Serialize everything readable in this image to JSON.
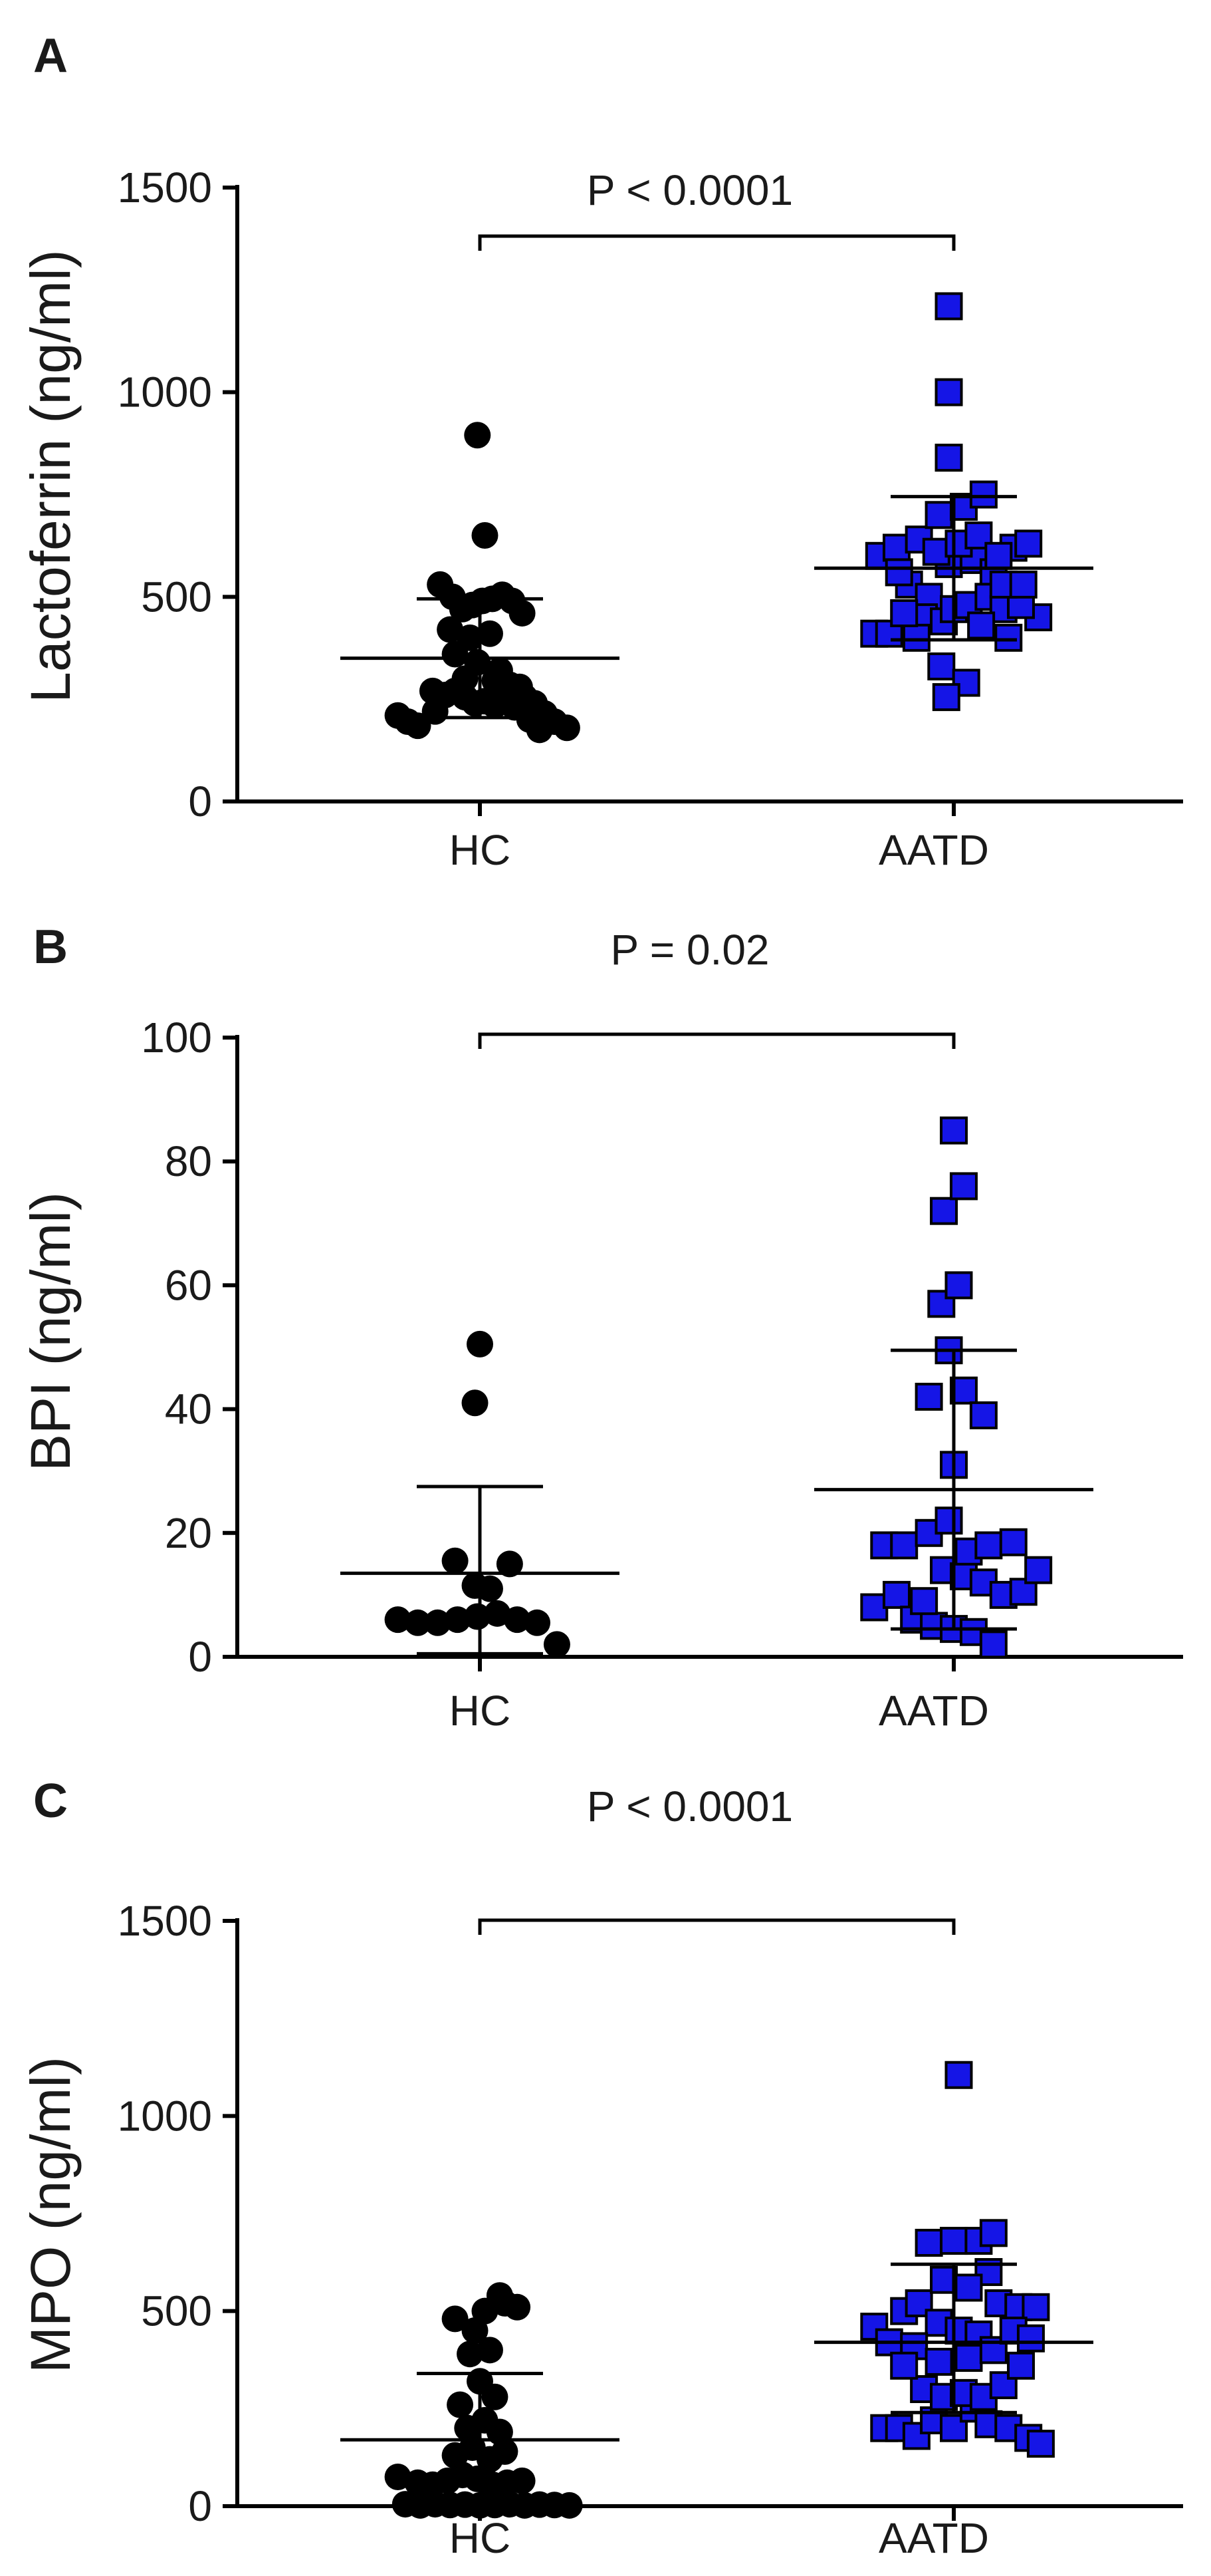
{
  "chart_data": [
    {
      "panel": "A",
      "type": "scatter",
      "ylabel": "Lactoferrin (ng/ml)",
      "categories": [
        "HC",
        "AATD"
      ],
      "ylim": [
        0,
        1500
      ],
      "yticks": [
        0,
        500,
        1000,
        1500
      ],
      "grid": false,
      "annotation": "P < 0.0001",
      "series": [
        {
          "name": "HC",
          "color": "#000000",
          "marker": "circle",
          "mean": 350,
          "sd_low": 205,
          "sd_high": 495,
          "points": [
            [
              -0.33,
              210
            ],
            [
              -0.29,
              195
            ],
            [
              -0.25,
              185
            ],
            [
              -0.18,
              220
            ],
            [
              -0.14,
              260
            ],
            [
              -0.1,
              270
            ],
            [
              -0.06,
              255
            ],
            [
              -0.02,
              240
            ],
            [
              0.02,
              245
            ],
            [
              0.06,
              235
            ],
            [
              0.1,
              250
            ],
            [
              0.14,
              230
            ],
            [
              0.18,
              255
            ],
            [
              0.22,
              240
            ],
            [
              0.26,
              215
            ],
            [
              0.3,
              195
            ],
            [
              0.35,
              180
            ],
            [
              0.24,
              175
            ],
            [
              -0.16,
              530
            ],
            [
              -0.11,
              500
            ],
            [
              -0.07,
              470
            ],
            [
              -0.03,
              480
            ],
            [
              0.01,
              490
            ],
            [
              0.05,
              495
            ],
            [
              0.09,
              505
            ],
            [
              0.13,
              490
            ],
            [
              0.17,
              460
            ],
            [
              -0.12,
              420
            ],
            [
              -0.04,
              400
            ],
            [
              0.04,
              410
            ],
            [
              -0.1,
              360
            ],
            [
              -0.01,
              340
            ],
            [
              0.08,
              320
            ],
            [
              -0.06,
              300
            ],
            [
              0.06,
              295
            ],
            [
              0.16,
              280
            ],
            [
              -0.19,
              270
            ],
            [
              0.12,
              285
            ],
            [
              0.02,
              650
            ],
            [
              -0.01,
              895
            ],
            [
              0.2,
              200
            ]
          ]
        },
        {
          "name": "AATD",
          "color": "#1515e6",
          "marker": "square",
          "mean": 570,
          "sd_low": 395,
          "sd_high": 745,
          "points": [
            [
              -0.32,
              410
            ],
            [
              -0.26,
              410
            ],
            [
              -0.3,
              600
            ],
            [
              -0.23,
              620
            ],
            [
              -0.14,
              640
            ],
            [
              -0.06,
              700
            ],
            [
              0.04,
              720
            ],
            [
              0.12,
              750
            ],
            [
              -0.18,
              530
            ],
            [
              -0.1,
              500
            ],
            [
              -0.02,
              580
            ],
            [
              0.08,
              590
            ],
            [
              0.16,
              560
            ],
            [
              0.24,
              620
            ],
            [
              0.3,
              630
            ],
            [
              0.34,
              450
            ],
            [
              -0.12,
              450
            ],
            [
              -0.04,
              440
            ],
            [
              0.0,
              470
            ],
            [
              0.06,
              480
            ],
            [
              0.14,
              500
            ],
            [
              0.2,
              470
            ],
            [
              0.27,
              480
            ],
            [
              -0.07,
              610
            ],
            [
              0.02,
              630
            ],
            [
              0.1,
              650
            ],
            [
              0.18,
              600
            ],
            [
              -0.15,
              400
            ],
            [
              -0.05,
              330
            ],
            [
              0.05,
              290
            ],
            [
              0.11,
              430
            ],
            [
              0.2,
              530
            ],
            [
              -0.22,
              560
            ],
            [
              0.22,
              400
            ],
            [
              0.28,
              530
            ],
            [
              -0.2,
              460
            ],
            [
              -0.03,
              255
            ],
            [
              -0.02,
              1210
            ],
            [
              -0.02,
              1000
            ],
            [
              -0.02,
              840
            ]
          ]
        }
      ]
    },
    {
      "panel": "B",
      "type": "scatter",
      "ylabel": "BPI (ng/ml)",
      "categories": [
        "HC",
        "AATD"
      ],
      "ylim": [
        0,
        100
      ],
      "yticks": [
        0,
        20,
        40,
        60,
        80,
        100
      ],
      "grid": false,
      "annotation": "P = 0.02",
      "series": [
        {
          "name": "HC",
          "color": "#000000",
          "marker": "circle",
          "mean": 13.5,
          "sd_low": 0.5,
          "sd_high": 27.5,
          "points": [
            [
              -0.33,
              6
            ],
            [
              -0.25,
              5.5
            ],
            [
              -0.17,
              5.5
            ],
            [
              -0.09,
              6
            ],
            [
              -0.01,
              6.5
            ],
            [
              0.07,
              7
            ],
            [
              0.15,
              6
            ],
            [
              0.23,
              5.5
            ],
            [
              0.31,
              2
            ],
            [
              -0.1,
              15.5
            ],
            [
              -0.02,
              11.5
            ],
            [
              0.04,
              11
            ],
            [
              0.12,
              15
            ],
            [
              -0.02,
              41
            ],
            [
              0.0,
              50.5
            ]
          ]
        },
        {
          "name": "AATD",
          "color": "#1515e6",
          "marker": "square",
          "mean": 27,
          "sd_low": 4.5,
          "sd_high": 49.5,
          "points": [
            [
              -0.32,
              8
            ],
            [
              -0.28,
              18
            ],
            [
              -0.2,
              18
            ],
            [
              -0.23,
              10
            ],
            [
              -0.16,
              6
            ],
            [
              -0.08,
              5
            ],
            [
              0.0,
              4.5
            ],
            [
              0.08,
              4
            ],
            [
              0.16,
              2
            ],
            [
              -0.12,
              9
            ],
            [
              -0.04,
              14
            ],
            [
              0.04,
              13
            ],
            [
              0.12,
              12
            ],
            [
              0.2,
              10
            ],
            [
              0.28,
              10.5
            ],
            [
              0.34,
              14
            ],
            [
              -0.1,
              20
            ],
            [
              -0.02,
              22
            ],
            [
              0.06,
              17
            ],
            [
              0.14,
              18
            ],
            [
              0.24,
              18.5
            ],
            [
              0.0,
              31
            ],
            [
              -0.1,
              42
            ],
            [
              0.04,
              43
            ],
            [
              0.12,
              39
            ],
            [
              -0.02,
              49.5
            ],
            [
              -0.05,
              57
            ],
            [
              0.02,
              60
            ],
            [
              -0.04,
              72
            ],
            [
              0.04,
              76
            ],
            [
              0.0,
              85
            ]
          ]
        }
      ]
    },
    {
      "panel": "C",
      "type": "scatter",
      "ylabel": "MPO (ng/ml)",
      "categories": [
        "HC",
        "AATD"
      ],
      "ylim": [
        0,
        1500
      ],
      "yticks": [
        0,
        500,
        1000,
        1500
      ],
      "grid": false,
      "annotation": "P < 0.0001",
      "series": [
        {
          "name": "HC",
          "color": "#000000",
          "marker": "circle",
          "mean": 170,
          "sd_low": 0,
          "sd_high": 340,
          "points": [
            [
              -0.3,
              5
            ],
            [
              -0.24,
              2
            ],
            [
              -0.18,
              5
            ],
            [
              -0.12,
              3
            ],
            [
              -0.06,
              4
            ],
            [
              0.0,
              2
            ],
            [
              0.06,
              3
            ],
            [
              0.12,
              5
            ],
            [
              0.18,
              2
            ],
            [
              0.24,
              4
            ],
            [
              0.3,
              3
            ],
            [
              0.36,
              2
            ],
            [
              -0.33,
              75
            ],
            [
              -0.25,
              60
            ],
            [
              -0.19,
              55
            ],
            [
              -0.13,
              65
            ],
            [
              -0.07,
              80
            ],
            [
              -0.01,
              70
            ],
            [
              0.05,
              55
            ],
            [
              0.11,
              60
            ],
            [
              0.17,
              65
            ],
            [
              -0.1,
              130
            ],
            [
              -0.03,
              150
            ],
            [
              0.04,
              120
            ],
            [
              0.1,
              140
            ],
            [
              -0.05,
              200
            ],
            [
              0.02,
              220
            ],
            [
              0.08,
              190
            ],
            [
              -0.08,
              260
            ],
            [
              0.06,
              280
            ],
            [
              0.0,
              320
            ],
            [
              -0.04,
              390
            ],
            [
              0.04,
              400
            ],
            [
              -0.02,
              450
            ],
            [
              0.02,
              500
            ],
            [
              0.1,
              520
            ],
            [
              0.15,
              510
            ],
            [
              -0.1,
              480
            ],
            [
              0.08,
              540
            ]
          ]
        },
        {
          "name": "AATD",
          "color": "#1515e6",
          "marker": "square",
          "mean": 420,
          "sd_low": 240,
          "sd_high": 620,
          "points": [
            [
              -0.32,
              460
            ],
            [
              -0.26,
              420
            ],
            [
              -0.2,
              500
            ],
            [
              -0.14,
              520
            ],
            [
              -0.06,
              470
            ],
            [
              0.02,
              450
            ],
            [
              0.1,
              440
            ],
            [
              0.18,
              520
            ],
            [
              0.26,
              510
            ],
            [
              0.33,
              510
            ],
            [
              -0.28,
              200
            ],
            [
              -0.22,
              200
            ],
            [
              -0.15,
              180
            ],
            [
              -0.08,
              220
            ],
            [
              0.0,
              200
            ],
            [
              0.08,
              250
            ],
            [
              0.14,
              210
            ],
            [
              0.22,
              200
            ],
            [
              0.3,
              175
            ],
            [
              0.35,
              160
            ],
            [
              -0.12,
              300
            ],
            [
              -0.04,
              280
            ],
            [
              0.04,
              290
            ],
            [
              0.12,
              280
            ],
            [
              0.2,
              310
            ],
            [
              0.27,
              360
            ],
            [
              -0.16,
              410
            ],
            [
              -0.06,
              370
            ],
            [
              0.06,
              380
            ],
            [
              0.16,
              400
            ],
            [
              0.24,
              450
            ],
            [
              0.31,
              430
            ],
            [
              -0.2,
              360
            ],
            [
              0.14,
              600
            ],
            [
              -0.04,
              580
            ],
            [
              0.06,
              560
            ],
            [
              -0.1,
              675
            ],
            [
              0.0,
              680
            ],
            [
              0.1,
              680
            ],
            [
              0.16,
              700
            ],
            [
              0.02,
              1105
            ]
          ]
        }
      ]
    }
  ]
}
